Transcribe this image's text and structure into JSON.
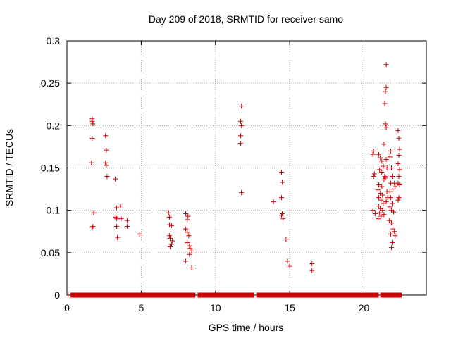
{
  "chart_data": {
    "type": "scatter",
    "title": "Day 209 of 2018, SRMTID for receiver samo",
    "xlabel": "GPS time / hours",
    "ylabel": "SRMTID / TECUs",
    "xlim": [
      0,
      24.2
    ],
    "ylim": [
      0,
      0.3
    ],
    "xticks": [
      0,
      5,
      10,
      15,
      20
    ],
    "xtick_labels": [
      "0",
      "5",
      "10",
      "15",
      "20"
    ],
    "yticks": [
      0,
      0.05,
      0.1,
      0.15,
      0.2,
      0.25,
      0.3
    ],
    "ytick_labels": [
      "0",
      "0.05",
      "0.1",
      "0.15",
      "0.2",
      "0.25",
      "0.3"
    ],
    "grid": true,
    "marker": "plus",
    "series": [
      {
        "name": "SRMTID",
        "color": "#cc0000",
        "points": [
          [
            1.7,
            0.208
          ],
          [
            1.7,
            0.205
          ],
          [
            1.75,
            0.202
          ],
          [
            1.7,
            0.185
          ],
          [
            1.65,
            0.156
          ],
          [
            1.8,
            0.097
          ],
          [
            1.75,
            0.081
          ],
          [
            1.7,
            0.08
          ],
          [
            2.6,
            0.188
          ],
          [
            2.65,
            0.171
          ],
          [
            2.6,
            0.156
          ],
          [
            2.65,
            0.153
          ],
          [
            2.7,
            0.14
          ],
          [
            3.25,
            0.137
          ],
          [
            3.35,
            0.103
          ],
          [
            3.6,
            0.105
          ],
          [
            3.3,
            0.092
          ],
          [
            3.35,
            0.09
          ],
          [
            3.65,
            0.09
          ],
          [
            4.05,
            0.088
          ],
          [
            3.35,
            0.081
          ],
          [
            4.05,
            0.081
          ],
          [
            3.4,
            0.068
          ],
          [
            4.9,
            0.072
          ],
          [
            6.85,
            0.097
          ],
          [
            6.9,
            0.092
          ],
          [
            6.9,
            0.083
          ],
          [
            7.05,
            0.082
          ],
          [
            6.9,
            0.07
          ],
          [
            6.95,
            0.067
          ],
          [
            7.1,
            0.064
          ],
          [
            7.05,
            0.06
          ],
          [
            6.95,
            0.057
          ],
          [
            8.0,
            0.096
          ],
          [
            8.15,
            0.093
          ],
          [
            8.1,
            0.089
          ],
          [
            8.0,
            0.078
          ],
          [
            8.1,
            0.074
          ],
          [
            8.2,
            0.07
          ],
          [
            8.1,
            0.062
          ],
          [
            8.25,
            0.058
          ],
          [
            8.3,
            0.055
          ],
          [
            8.4,
            0.052
          ],
          [
            8.25,
            0.048
          ],
          [
            8.0,
            0.04
          ],
          [
            8.4,
            0.032
          ],
          [
            11.75,
            0.223
          ],
          [
            11.7,
            0.205
          ],
          [
            11.75,
            0.2
          ],
          [
            11.7,
            0.188
          ],
          [
            11.7,
            0.179
          ],
          [
            11.75,
            0.121
          ],
          [
            13.9,
            0.11
          ],
          [
            14.45,
            0.145
          ],
          [
            14.5,
            0.133
          ],
          [
            14.45,
            0.115
          ],
          [
            14.5,
            0.096
          ],
          [
            14.45,
            0.094
          ],
          [
            14.55,
            0.09
          ],
          [
            14.75,
            0.066
          ],
          [
            14.85,
            0.04
          ],
          [
            15.0,
            0.034
          ],
          [
            16.5,
            0.037
          ],
          [
            16.5,
            0.029
          ],
          [
            20.6,
            0.166
          ],
          [
            20.65,
            0.17
          ],
          [
            20.7,
            0.143
          ],
          [
            20.65,
            0.14
          ],
          [
            20.6,
            0.1
          ],
          [
            20.75,
            0.096
          ],
          [
            21.0,
            0.166
          ],
          [
            21.1,
            0.162
          ],
          [
            21.2,
            0.158
          ],
          [
            21.3,
            0.152
          ],
          [
            21.05,
            0.148
          ],
          [
            21.2,
            0.145
          ],
          [
            21.4,
            0.14
          ],
          [
            21.35,
            0.136
          ],
          [
            21.0,
            0.13
          ],
          [
            21.2,
            0.128
          ],
          [
            20.95,
            0.124
          ],
          [
            21.1,
            0.12
          ],
          [
            21.25,
            0.118
          ],
          [
            21.0,
            0.115
          ],
          [
            21.15,
            0.112
          ],
          [
            21.3,
            0.108
          ],
          [
            21.0,
            0.105
          ],
          [
            21.1,
            0.102
          ],
          [
            21.25,
            0.1
          ],
          [
            21.05,
            0.097
          ],
          [
            21.15,
            0.093
          ],
          [
            20.95,
            0.09
          ],
          [
            21.35,
            0.095
          ],
          [
            21.5,
            0.272
          ],
          [
            21.5,
            0.245
          ],
          [
            21.45,
            0.24
          ],
          [
            21.4,
            0.226
          ],
          [
            21.45,
            0.202
          ],
          [
            21.5,
            0.198
          ],
          [
            21.35,
            0.178
          ],
          [
            21.5,
            0.16
          ],
          [
            21.55,
            0.15
          ],
          [
            21.45,
            0.138
          ],
          [
            21.55,
            0.122
          ],
          [
            21.6,
            0.115
          ],
          [
            21.5,
            0.11
          ],
          [
            21.8,
            0.17
          ],
          [
            21.75,
            0.163
          ],
          [
            21.85,
            0.15
          ],
          [
            21.9,
            0.14
          ],
          [
            21.8,
            0.132
          ],
          [
            21.95,
            0.125
          ],
          [
            21.75,
            0.122
          ],
          [
            21.8,
            0.115
          ],
          [
            21.9,
            0.108
          ],
          [
            21.75,
            0.104
          ],
          [
            21.85,
            0.1
          ],
          [
            21.7,
            0.088
          ],
          [
            21.85,
            0.085
          ],
          [
            21.95,
            0.078
          ],
          [
            21.8,
            0.072
          ],
          [
            21.9,
            0.062
          ],
          [
            21.85,
            0.056
          ],
          [
            22.05,
            0.132
          ],
          [
            22.1,
            0.128
          ],
          [
            22.0,
            0.098
          ],
          [
            22.05,
            0.075
          ],
          [
            22.1,
            0.07
          ],
          [
            22.3,
            0.194
          ],
          [
            22.35,
            0.185
          ],
          [
            22.4,
            0.172
          ],
          [
            22.35,
            0.165
          ],
          [
            22.3,
            0.155
          ],
          [
            22.4,
            0.148
          ],
          [
            22.35,
            0.14
          ],
          [
            22.3,
            0.132
          ],
          [
            22.4,
            0.13
          ],
          [
            22.35,
            0.115
          ],
          [
            22.3,
            0.112
          ]
        ]
      },
      {
        "name": "baseline",
        "color": "#cc0000",
        "x_range": [
          0.05,
          22.55
        ],
        "gaps": [
          [
            0.1,
            0.25
          ],
          [
            8.65,
            8.8
          ],
          [
            12.6,
            12.75
          ],
          [
            21.0,
            21.1
          ]
        ],
        "value": 0
      }
    ]
  }
}
